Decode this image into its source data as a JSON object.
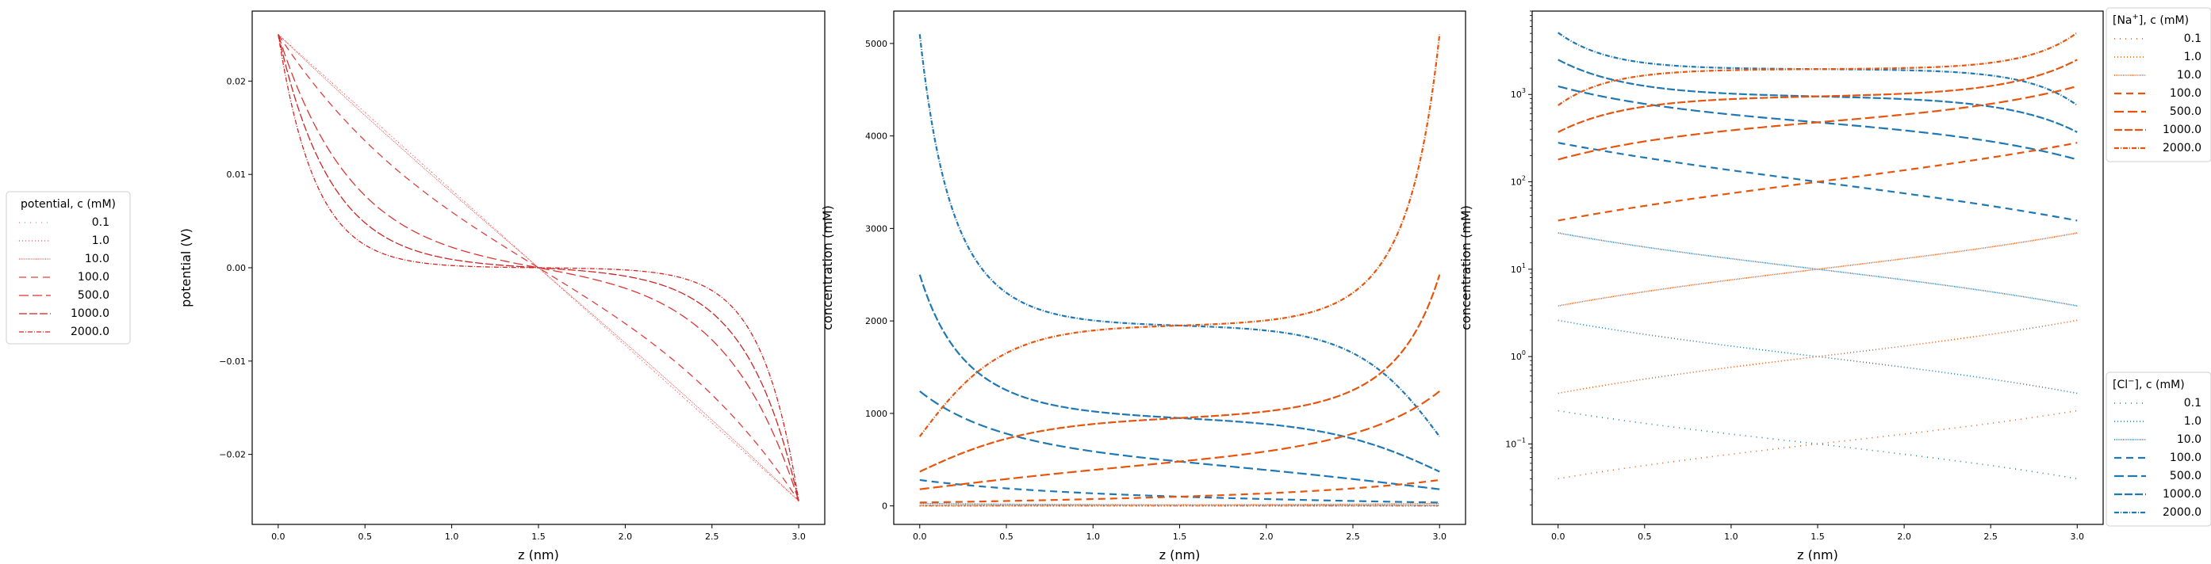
{
  "chart_data": [
    {
      "type": "line",
      "xlabel": "z (nm)",
      "ylabel": "potential (V)",
      "xlim": [
        -0.15,
        3.15
      ],
      "ylim": [
        -0.0275,
        0.0275
      ],
      "xticks": [
        0.0,
        0.5,
        1.0,
        1.5,
        2.0,
        2.5,
        3.0
      ],
      "xtick_labels": [
        "0.0",
        "0.5",
        "1.0",
        "1.5",
        "2.0",
        "2.5",
        "3.0"
      ],
      "yticks": [
        -0.02,
        -0.01,
        0.0,
        0.01,
        0.02
      ],
      "ytick_labels": [
        "−0.02",
        "−0.01",
        "0.00",
        "0.01",
        "0.02"
      ],
      "legend": {
        "title": "potential, c (mM)",
        "placement": "outside-left",
        "entries": [
          "0.1",
          "1.0",
          "10.0",
          "100.0",
          "500.0",
          "1000.0",
          "2000.0"
        ]
      },
      "series": [
        {
          "name": "0.1",
          "color": "#ff6b6b",
          "x": [
            0.0,
            3.0
          ],
          "y": [
            0.025,
            -0.025
          ],
          "kappa": 0.03
        },
        {
          "name": "1.0",
          "color": "#f26060",
          "x": [
            0.0,
            3.0
          ],
          "y": [
            0.025,
            -0.025
          ],
          "kappa": 0.1
        },
        {
          "name": "10.0",
          "color": "#ea5050",
          "x": [
            0.0,
            3.0
          ],
          "y": [
            0.025,
            -0.025
          ],
          "kappa": 0.32
        },
        {
          "name": "100.0",
          "color": "#e04040",
          "x": [
            0.0,
            3.0
          ],
          "y": [
            0.025,
            -0.025
          ],
          "kappa": 1.04
        },
        {
          "name": "500.0",
          "color": "#dd3333",
          "x": [
            0.0,
            3.0
          ],
          "y": [
            0.025,
            -0.025
          ],
          "kappa": 2.33
        },
        {
          "name": "1000.0",
          "color": "#cc2222",
          "x": [
            0.0,
            3.0
          ],
          "y": [
            0.025,
            -0.025
          ],
          "kappa": 3.29
        },
        {
          "name": "2000.0",
          "color": "#d62222",
          "x": [
            0.0,
            3.0
          ],
          "y": [
            0.025,
            -0.025
          ],
          "kappa": 4.65
        }
      ]
    },
    {
      "type": "line",
      "xlabel": "z (nm)",
      "ylabel": "concentration (mM)",
      "xlim": [
        -0.15,
        3.15
      ],
      "ylim": [
        -200,
        5350
      ],
      "xticks": [
        0.0,
        0.5,
        1.0,
        1.5,
        2.0,
        2.5,
        3.0
      ],
      "xtick_labels": [
        "0.0",
        "0.5",
        "1.0",
        "1.5",
        "2.0",
        "2.5",
        "3.0"
      ],
      "yticks": [
        0,
        1000,
        2000,
        3000,
        4000,
        5000
      ],
      "ytick_labels": [
        "0",
        "1000",
        "2000",
        "3000",
        "4000",
        "5000"
      ],
      "series_groups": [
        {
          "ion": "Na+",
          "color": "#e6550d",
          "boundary_values": [
            [
              0.1,
              0.04,
              0.24
            ],
            [
              1.0,
              0.38,
              2.6
            ],
            [
              10.0,
              3.8,
              26
            ],
            [
              100.0,
              36,
              280
            ],
            [
              500.0,
              180,
              1240
            ],
            [
              1000.0,
              370,
              2500
            ],
            [
              2000.0,
              750,
              5100
            ]
          ]
        },
        {
          "ion": "Cl-",
          "color": "#1f78b4",
          "boundary_values": [
            [
              0.1,
              0.24,
              0.04
            ],
            [
              1.0,
              2.6,
              0.38
            ],
            [
              10.0,
              26,
              3.8
            ],
            [
              100.0,
              280,
              36
            ],
            [
              500.0,
              1240,
              180
            ],
            [
              1000.0,
              2500,
              370
            ],
            [
              2000.0,
              5100,
              750
            ]
          ]
        }
      ]
    },
    {
      "type": "line",
      "xlabel": "z (nm)",
      "ylabel": "concentration (mM)",
      "yscale": "log",
      "xlim": [
        -0.15,
        3.15
      ],
      "ylim": [
        0.012,
        9000
      ],
      "xticks": [
        0.0,
        0.5,
        1.0,
        1.5,
        2.0,
        2.5,
        3.0
      ],
      "xtick_labels": [
        "0.0",
        "0.5",
        "1.0",
        "1.5",
        "2.0",
        "2.5",
        "3.0"
      ],
      "ytick_exponents": [
        -1,
        0,
        1,
        2,
        3
      ],
      "legends": [
        {
          "title": "[Na+], c (mM)",
          "placement": "outside-top-right",
          "color": "#e6550d",
          "entries": [
            "0.1",
            "1.0",
            "10.0",
            "100.0",
            "500.0",
            "1000.0",
            "2000.0"
          ]
        },
        {
          "title": "[Cl−], c (mM)",
          "placement": "outside-bottom-right",
          "color": "#1f78b4",
          "entries": [
            "0.1",
            "1.0",
            "10.0",
            "100.0",
            "500.0",
            "1000.0",
            "2000.0"
          ]
        }
      ]
    }
  ],
  "legend_text": {
    "pot_title": "potential, c (mM)",
    "na_title_prefix": "[Na",
    "na_title_suffix": "], c (mM)",
    "cl_title_prefix": "[Cl",
    "cl_title_suffix": "], c (mM)",
    "c_italic": "c"
  },
  "styles": {
    "dash_patterns": [
      "1 6",
      "1 3",
      "1 1.2",
      "9 6",
      "12 5",
      "10 3",
      "6 2 1 2"
    ],
    "na_color": "#e6550d",
    "cl_color": "#1f78b4",
    "pot_color": "#d62728"
  }
}
